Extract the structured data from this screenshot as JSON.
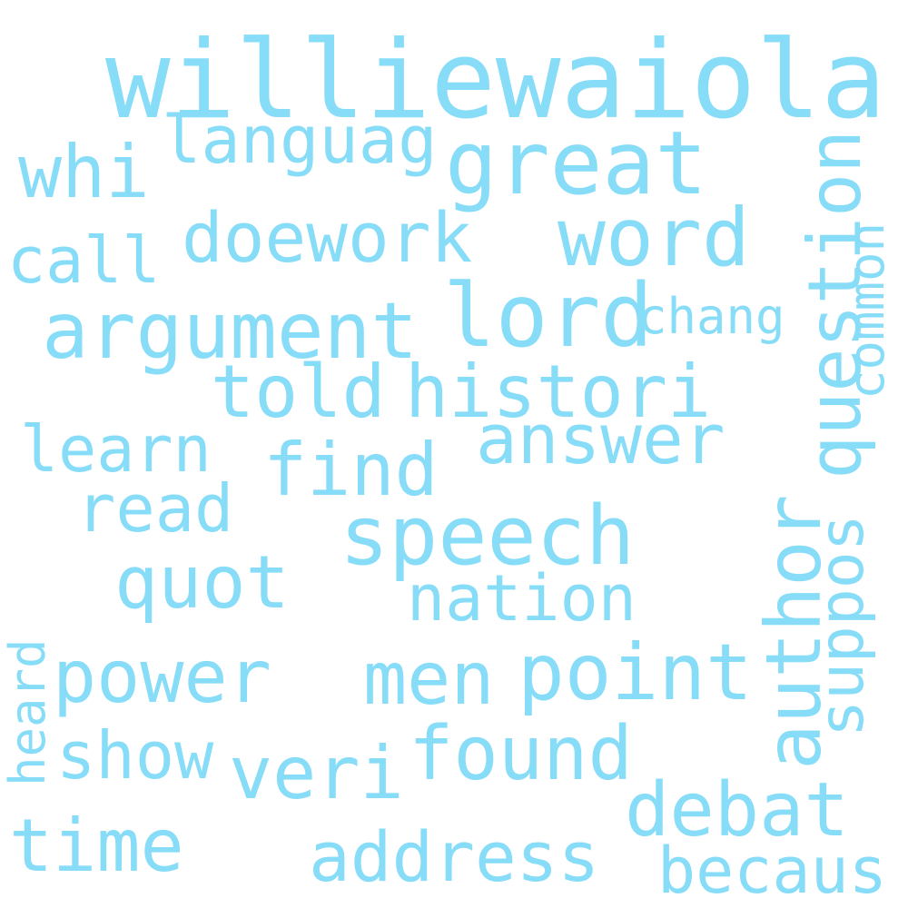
{
  "cloud": {
    "color": "#87dcf8",
    "background": "#ffffff",
    "words": [
      {
        "id": "williewaiola",
        "text": "williewaiola",
        "orientation": "horizontal"
      },
      {
        "id": "languag",
        "text": "languag",
        "orientation": "horizontal"
      },
      {
        "id": "great",
        "text": "great",
        "orientation": "horizontal"
      },
      {
        "id": "whi",
        "text": "whi",
        "orientation": "horizontal"
      },
      {
        "id": "question",
        "text": "question",
        "orientation": "vertical"
      },
      {
        "id": "common",
        "text": "common",
        "orientation": "vertical"
      },
      {
        "id": "doework",
        "text": "doework",
        "orientation": "horizontal"
      },
      {
        "id": "word",
        "text": "word",
        "orientation": "horizontal"
      },
      {
        "id": "call",
        "text": "call",
        "orientation": "horizontal"
      },
      {
        "id": "argument",
        "text": "argument",
        "orientation": "horizontal"
      },
      {
        "id": "lord",
        "text": "lord",
        "orientation": "horizontal"
      },
      {
        "id": "chang",
        "text": "chang",
        "orientation": "horizontal"
      },
      {
        "id": "told",
        "text": "told",
        "orientation": "horizontal"
      },
      {
        "id": "histori",
        "text": "histori",
        "orientation": "horizontal"
      },
      {
        "id": "learn",
        "text": "learn",
        "orientation": "horizontal"
      },
      {
        "id": "answer",
        "text": "answer",
        "orientation": "horizontal"
      },
      {
        "id": "find",
        "text": "find",
        "orientation": "horizontal"
      },
      {
        "id": "read",
        "text": "read",
        "orientation": "horizontal"
      },
      {
        "id": "speech",
        "text": "speech",
        "orientation": "horizontal"
      },
      {
        "id": "author",
        "text": "author",
        "orientation": "vertical"
      },
      {
        "id": "suppos",
        "text": "suppos",
        "orientation": "vertical"
      },
      {
        "id": "quot",
        "text": "quot",
        "orientation": "horizontal"
      },
      {
        "id": "nation",
        "text": "nation",
        "orientation": "horizontal"
      },
      {
        "id": "heard",
        "text": "heard",
        "orientation": "vertical"
      },
      {
        "id": "power",
        "text": "power",
        "orientation": "horizontal"
      },
      {
        "id": "men",
        "text": "men",
        "orientation": "horizontal"
      },
      {
        "id": "point",
        "text": "point",
        "orientation": "horizontal"
      },
      {
        "id": "show",
        "text": "show",
        "orientation": "horizontal"
      },
      {
        "id": "veri",
        "text": "veri",
        "orientation": "horizontal"
      },
      {
        "id": "found",
        "text": "found",
        "orientation": "horizontal"
      },
      {
        "id": "debat",
        "text": "debat",
        "orientation": "horizontal"
      },
      {
        "id": "time",
        "text": "time",
        "orientation": "horizontal"
      },
      {
        "id": "address",
        "text": "address",
        "orientation": "horizontal"
      },
      {
        "id": "becaus",
        "text": "becaus",
        "orientation": "horizontal"
      }
    ]
  }
}
